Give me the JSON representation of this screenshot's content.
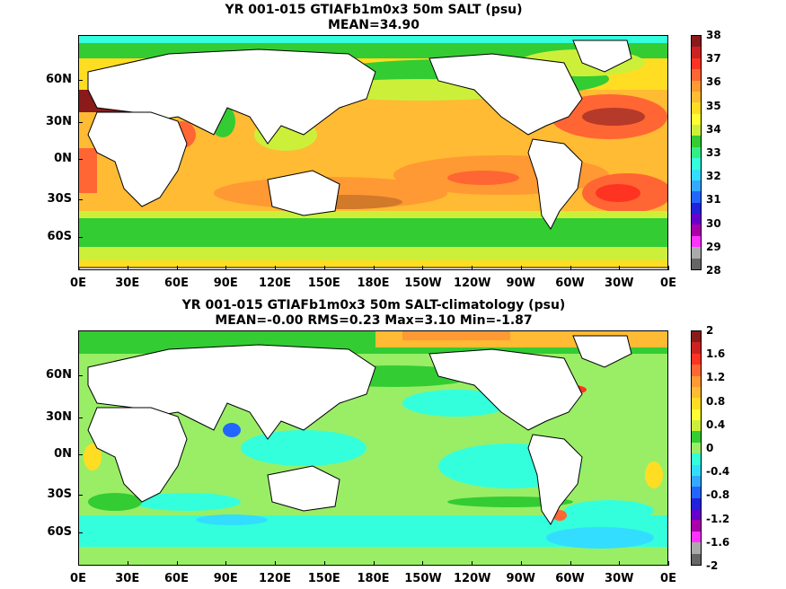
{
  "top_panel": {
    "title_line1": "YR 001-015 GTIAFb1m0x3 50m SALT (psu)",
    "title_line2": "MEAN=34.90",
    "colorbar_labels": [
      "38",
      "37",
      "36",
      "35",
      "34",
      "33",
      "32",
      "31",
      "30",
      "29",
      "28"
    ],
    "colorbar_colors": [
      "#8b1a1a",
      "#cc2222",
      "#ff3322",
      "#ff6633",
      "#ff9933",
      "#ffbb33",
      "#ffdd22",
      "#ffff33",
      "#ccf03a",
      "#33cc33",
      "#33ee88",
      "#33ffdd",
      "#33ddff",
      "#33aaff",
      "#2266ff",
      "#2222dd",
      "#6600cc",
      "#aa00aa",
      "#ff33ff",
      "#aaaaaa",
      "#666666"
    ]
  },
  "bottom_panel": {
    "title_line1": "YR 001-015 GTIAFb1m0x3 50m SALT-climatology (psu)",
    "title_line2": "MEAN=-0.00   RMS=0.23   Max=3.10   Min=-1.87",
    "colorbar_labels": [
      "2",
      "1.6",
      "1.2",
      "0.8",
      "0.4",
      "0",
      "-0.4",
      "-0.8",
      "-1.2",
      "-1.6",
      "-2"
    ],
    "colorbar_colors": [
      "#8b1a1a",
      "#cc2222",
      "#ff3322",
      "#ff6633",
      "#ff9933",
      "#ffbb33",
      "#ffdd22",
      "#ffff33",
      "#ccf03a",
      "#33cc33",
      "#99ee66",
      "#33ffdd",
      "#33ddff",
      "#33aaff",
      "#2266ff",
      "#2222dd",
      "#6600cc",
      "#aa00aa",
      "#ff33ff",
      "#aaaaaa",
      "#666666"
    ]
  },
  "y_labels": [
    "60N",
    "30N",
    "0N",
    "30S",
    "60S"
  ],
  "x_labels": [
    "0E",
    "30E",
    "60E",
    "90E",
    "120E",
    "150E",
    "180E",
    "150W",
    "120W",
    "90W",
    "60W",
    "30W",
    "0E"
  ]
}
